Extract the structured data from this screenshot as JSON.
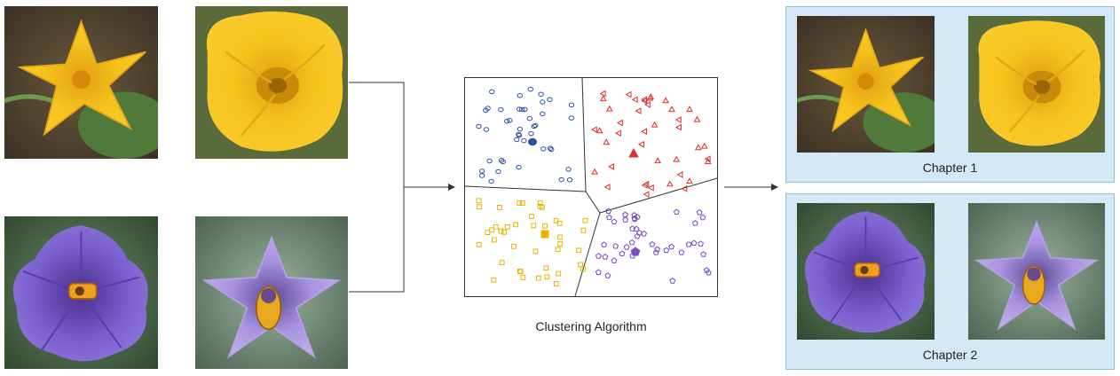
{
  "diagram": {
    "inputs": [
      {
        "kind": "yellow-flower-star"
      },
      {
        "kind": "yellow-flower-bell"
      },
      {
        "kind": "purple-flower-wide"
      },
      {
        "kind": "purple-flower-pale"
      }
    ],
    "algorithm_label": "Clustering Algorithm",
    "outputs": [
      {
        "label": "Chapter 1",
        "photos": [
          "yellow-flower-star",
          "yellow-flower-bell"
        ]
      },
      {
        "label": "Chapter 2",
        "photos": [
          "purple-flower-wide",
          "purple-flower-pale"
        ]
      }
    ],
    "colors": {
      "cluster_blue": "#2b4fa0",
      "cluster_red": "#d93030",
      "cluster_yellow": "#e8b400",
      "cluster_purple": "#7b4bbf",
      "panel_fill": "#d3e9f7"
    },
    "clusters": [
      {
        "marker": "circle",
        "color": "#2b4fa0",
        "region": "top-left"
      },
      {
        "marker": "triangle",
        "color": "#d93030",
        "region": "top-right"
      },
      {
        "marker": "square",
        "color": "#e8b400",
        "region": "bottom-left"
      },
      {
        "marker": "pentagon",
        "color": "#7b4bbf",
        "region": "bottom-right"
      }
    ]
  }
}
